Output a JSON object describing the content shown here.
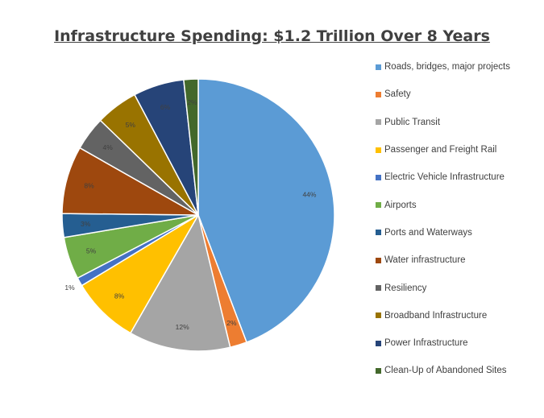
{
  "chart_data": {
    "type": "pie",
    "title": "Infrastructure Spending: $1.2 Trillion Over 8 Years",
    "legend_position": "right",
    "slices": [
      {
        "name": "Roads, bridges, major projects",
        "value": 44,
        "label": "44%",
        "color": "#5B9BD5"
      },
      {
        "name": "Safety",
        "value": 2,
        "label": "2%",
        "color": "#ED7D31"
      },
      {
        "name": "Public Transit",
        "value": 12,
        "label": "12%",
        "color": "#A5A5A5"
      },
      {
        "name": "Passenger and Freight Rail",
        "value": 8,
        "label": "8%",
        "color": "#FFC000"
      },
      {
        "name": "Electric Vehicle Infrastructure",
        "value": 1,
        "label": "1%",
        "color": "#4472C4"
      },
      {
        "name": "Airports",
        "value": 5,
        "label": "5%",
        "color": "#70AD47"
      },
      {
        "name": "Ports and Waterways",
        "value": 2.8,
        "label": "3%",
        "color": "#255E91"
      },
      {
        "name": "Water infrastructure",
        "value": 8,
        "label": "8%",
        "color": "#9E480E"
      },
      {
        "name": "Resiliency",
        "value": 4,
        "label": "4%",
        "color": "#636363"
      },
      {
        "name": "Broadband Infrastructure",
        "value": 5,
        "label": "5%",
        "color": "#997300"
      },
      {
        "name": "Power Infrastructure",
        "value": 6,
        "label": "6%",
        "color": "#264478"
      },
      {
        "name": "Clean-Up of Abandoned Sites",
        "value": 1.7,
        "label": "2%",
        "color": "#43682B"
      }
    ]
  }
}
